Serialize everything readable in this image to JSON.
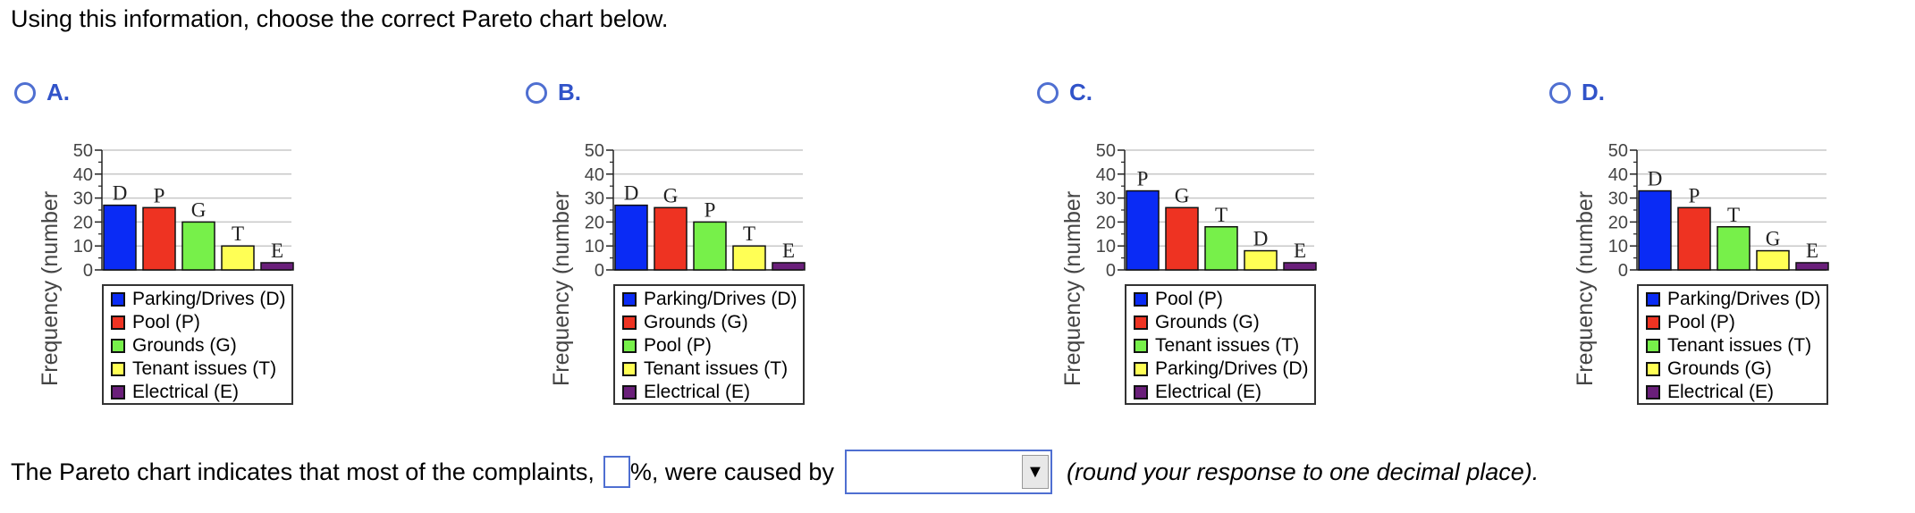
{
  "question": "Using this information, choose the correct Pareto chart below.",
  "options": [
    {
      "letter": "A.",
      "ylabel": "Frequency (number",
      "yticks": [
        "50",
        "40",
        "30",
        "20",
        "10",
        "0"
      ],
      "legend": [
        "Parking/Drives (D)",
        "Pool (P)",
        "Grounds (G)",
        "Tenant issues (T)",
        "Electrical (E)"
      ]
    },
    {
      "letter": "B.",
      "ylabel": "Frequency (number",
      "yticks": [
        "50",
        "40",
        "30",
        "20",
        "10",
        "0"
      ],
      "legend": [
        "Parking/Drives (D)",
        "Grounds (G)",
        "Pool (P)",
        "Tenant issues (T)",
        "Electrical (E)"
      ]
    },
    {
      "letter": "C.",
      "ylabel": "Frequency (number",
      "yticks": [
        "50",
        "40",
        "30",
        "20",
        "10",
        "0"
      ],
      "legend": [
        "Pool (P)",
        "Grounds  (G)",
        "Tenant issues (T)",
        "Parking/Drives (D)",
        "Electrical (E)"
      ]
    },
    {
      "letter": "D.",
      "ylabel": "Frequency (number",
      "yticks": [
        "50",
        "40",
        "30",
        "20",
        "10",
        "0"
      ],
      "legend": [
        "Parking/Drives (D)",
        "Pool (P)",
        "Tenant issues (T)",
        "Grounds (G)",
        "Electrical (E)"
      ]
    }
  ],
  "bar_colors": [
    "#0a2bf5",
    "#ee3322",
    "#77f04a",
    "#ffff55",
    "#6a1f7a"
  ],
  "chart_data": [
    {
      "type": "bar",
      "categories": [
        "D",
        "P",
        "G",
        "T",
        "E"
      ],
      "values": [
        27,
        26,
        20,
        10,
        3
      ],
      "ylim": [
        0,
        50
      ]
    },
    {
      "type": "bar",
      "categories": [
        "D",
        "G",
        "P",
        "T",
        "E"
      ],
      "values": [
        27,
        26,
        20,
        10,
        3
      ],
      "ylim": [
        0,
        50
      ]
    },
    {
      "type": "bar",
      "categories": [
        "P",
        "G",
        "T",
        "D",
        "E"
      ],
      "values": [
        33,
        26,
        18,
        8,
        3
      ],
      "ylim": [
        0,
        50
      ]
    },
    {
      "type": "bar",
      "categories": [
        "D",
        "P",
        "T",
        "G",
        "E"
      ],
      "values": [
        33,
        26,
        18,
        8,
        3
      ],
      "ylim": [
        0,
        50
      ]
    }
  ],
  "bottom": {
    "prefix": "The Pareto chart indicates that most of the complaints,",
    "pct_value": "",
    "middle": "%, were caused by",
    "dropdown_value": "",
    "dropdown_arrow": "▼",
    "note": "(round your response to one decimal place)."
  }
}
